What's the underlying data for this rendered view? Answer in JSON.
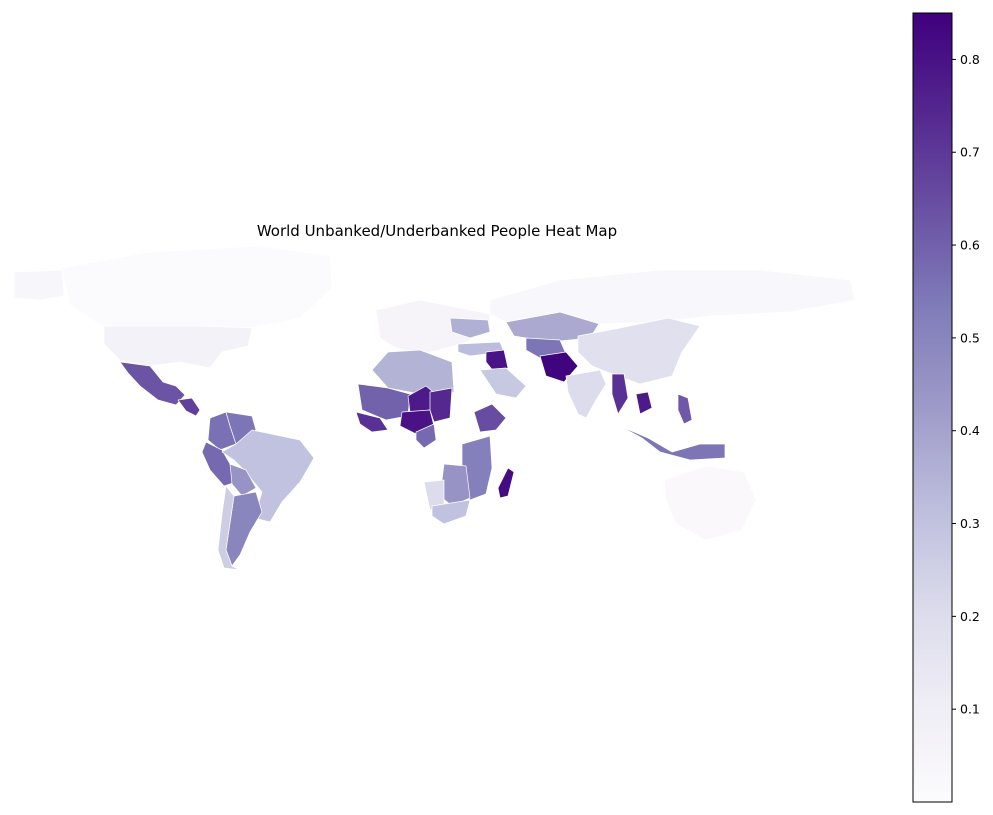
{
  "chart_data": {
    "type": "heatmap",
    "title": "World Unbanked/Underbanked People Heat Map",
    "colormap": "Purples",
    "colorbar": {
      "vmin": 0.0,
      "vmax": 0.85,
      "ticks": [
        {
          "value": 0.1,
          "label": "0.1"
        },
        {
          "value": 0.2,
          "label": "0.2"
        },
        {
          "value": 0.3,
          "label": "0.3"
        },
        {
          "value": 0.4,
          "label": "0.4"
        },
        {
          "value": 0.5,
          "label": "0.5"
        },
        {
          "value": 0.6,
          "label": "0.6"
        },
        {
          "value": 0.7,
          "label": "0.7"
        },
        {
          "value": 0.8,
          "label": "0.8"
        }
      ]
    },
    "regions": [
      {
        "name": "canada",
        "value": 0.01
      },
      {
        "name": "usa",
        "value": 0.07
      },
      {
        "name": "mexico",
        "value": 0.63
      },
      {
        "name": "central-america",
        "value": 0.68
      },
      {
        "name": "colombia",
        "value": 0.56
      },
      {
        "name": "venezuela",
        "value": 0.55
      },
      {
        "name": "peru",
        "value": 0.58
      },
      {
        "name": "brazil",
        "value": 0.3
      },
      {
        "name": "bolivia",
        "value": 0.45
      },
      {
        "name": "argentina",
        "value": 0.5
      },
      {
        "name": "chile",
        "value": 0.26
      },
      {
        "name": "europe",
        "value": 0.05
      },
      {
        "name": "ukraine",
        "value": 0.36
      },
      {
        "name": "turkey",
        "value": 0.32
      },
      {
        "name": "north-africa",
        "value": 0.35
      },
      {
        "name": "mali-region",
        "value": 0.6
      },
      {
        "name": "west-africa-coast",
        "value": 0.72
      },
      {
        "name": "nigeria",
        "value": 0.8
      },
      {
        "name": "niger",
        "value": 0.78
      },
      {
        "name": "chad",
        "value": 0.74
      },
      {
        "name": "cameroon",
        "value": 0.58
      },
      {
        "name": "ethiopia",
        "value": 0.65
      },
      {
        "name": "east-africa",
        "value": 0.52
      },
      {
        "name": "southern-africa",
        "value": 0.45
      },
      {
        "name": "namibia",
        "value": 0.2
      },
      {
        "name": "south-africa",
        "value": 0.3
      },
      {
        "name": "madagascar",
        "value": 0.82
      },
      {
        "name": "iraq",
        "value": 0.8
      },
      {
        "name": "saudi-arabia",
        "value": 0.28
      },
      {
        "name": "kazakhstan",
        "value": 0.38
      },
      {
        "name": "central-asia",
        "value": 0.55
      },
      {
        "name": "afghanistan",
        "value": 0.84
      },
      {
        "name": "russia",
        "value": 0.03
      },
      {
        "name": "india",
        "value": 0.2
      },
      {
        "name": "china",
        "value": 0.18
      },
      {
        "name": "myanmar",
        "value": 0.72
      },
      {
        "name": "cambodia",
        "value": 0.78
      },
      {
        "name": "indonesia",
        "value": 0.55
      },
      {
        "name": "philippines",
        "value": 0.62
      },
      {
        "name": "australia",
        "value": 0.02
      },
      {
        "name": "greenland",
        "value": 0.04
      }
    ]
  }
}
